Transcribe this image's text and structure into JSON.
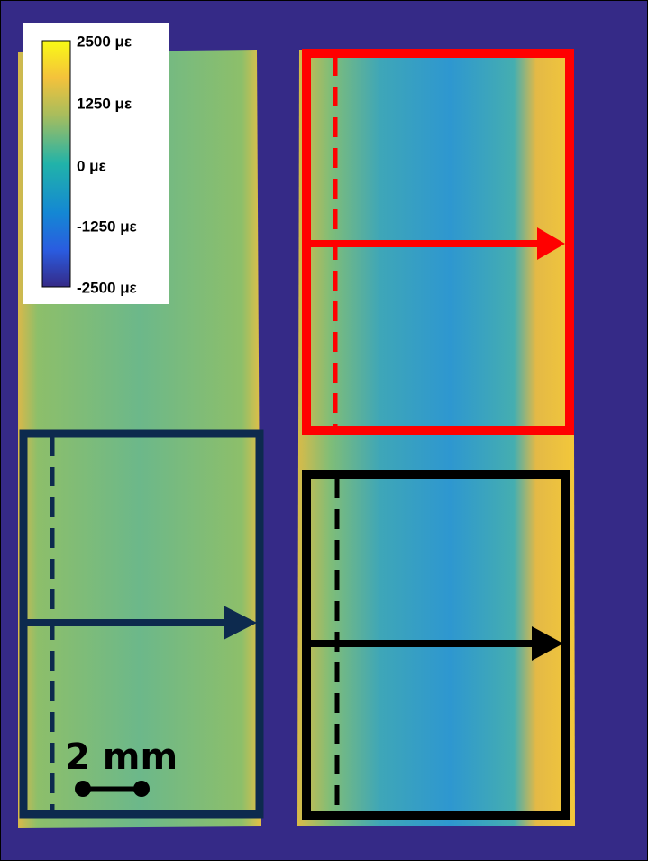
{
  "colorbar": {
    "labels": [
      "2500 με",
      "1250 με",
      "0 με",
      "-1250 με",
      "-2500 με"
    ]
  },
  "scale_bar": {
    "label": "2 mm"
  }
}
